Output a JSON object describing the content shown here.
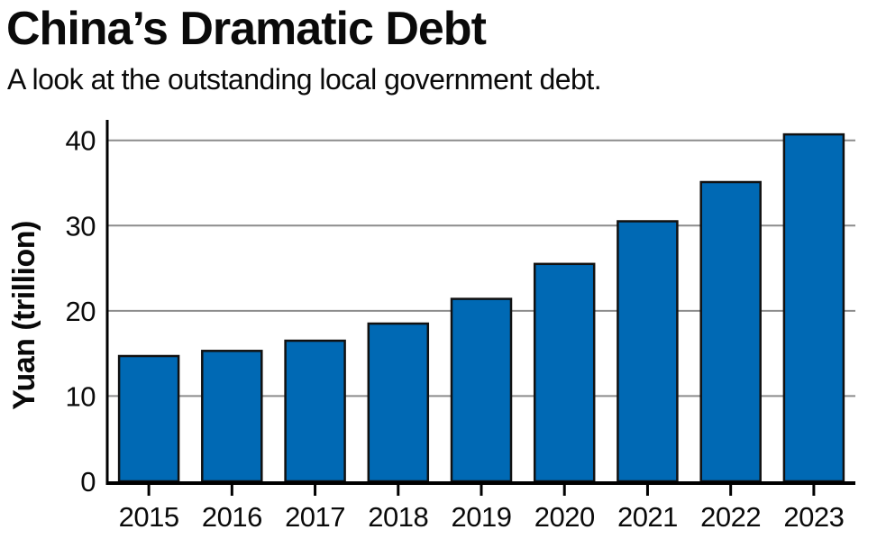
{
  "header": {
    "title": "China’s Dramatic Debt",
    "subtitle": "A look at the outstanding local government debt."
  },
  "chart_data": {
    "type": "bar",
    "title": "China’s Dramatic Debt",
    "subtitle": "A look at the outstanding local government debt.",
    "categories": [
      "2015",
      "2016",
      "2017",
      "2018",
      "2019",
      "2020",
      "2021",
      "2022",
      "2023"
    ],
    "values": [
      14.7,
      15.3,
      16.5,
      18.5,
      21.4,
      25.5,
      30.5,
      35.1,
      40.7
    ],
    "xlabel": "",
    "ylabel": "Yuan (trillion)",
    "yticks": [
      0,
      10,
      20,
      30,
      40
    ],
    "ylim": [
      0,
      42.4
    ],
    "grid": "horizontal",
    "legend": "none",
    "colors": {
      "bar_fill": "#0069B4",
      "bar_outline": "#111111",
      "gridline": "#8C8C8C",
      "axis": "#000000",
      "text": "#0a0a0a",
      "background": "#ffffff"
    }
  }
}
